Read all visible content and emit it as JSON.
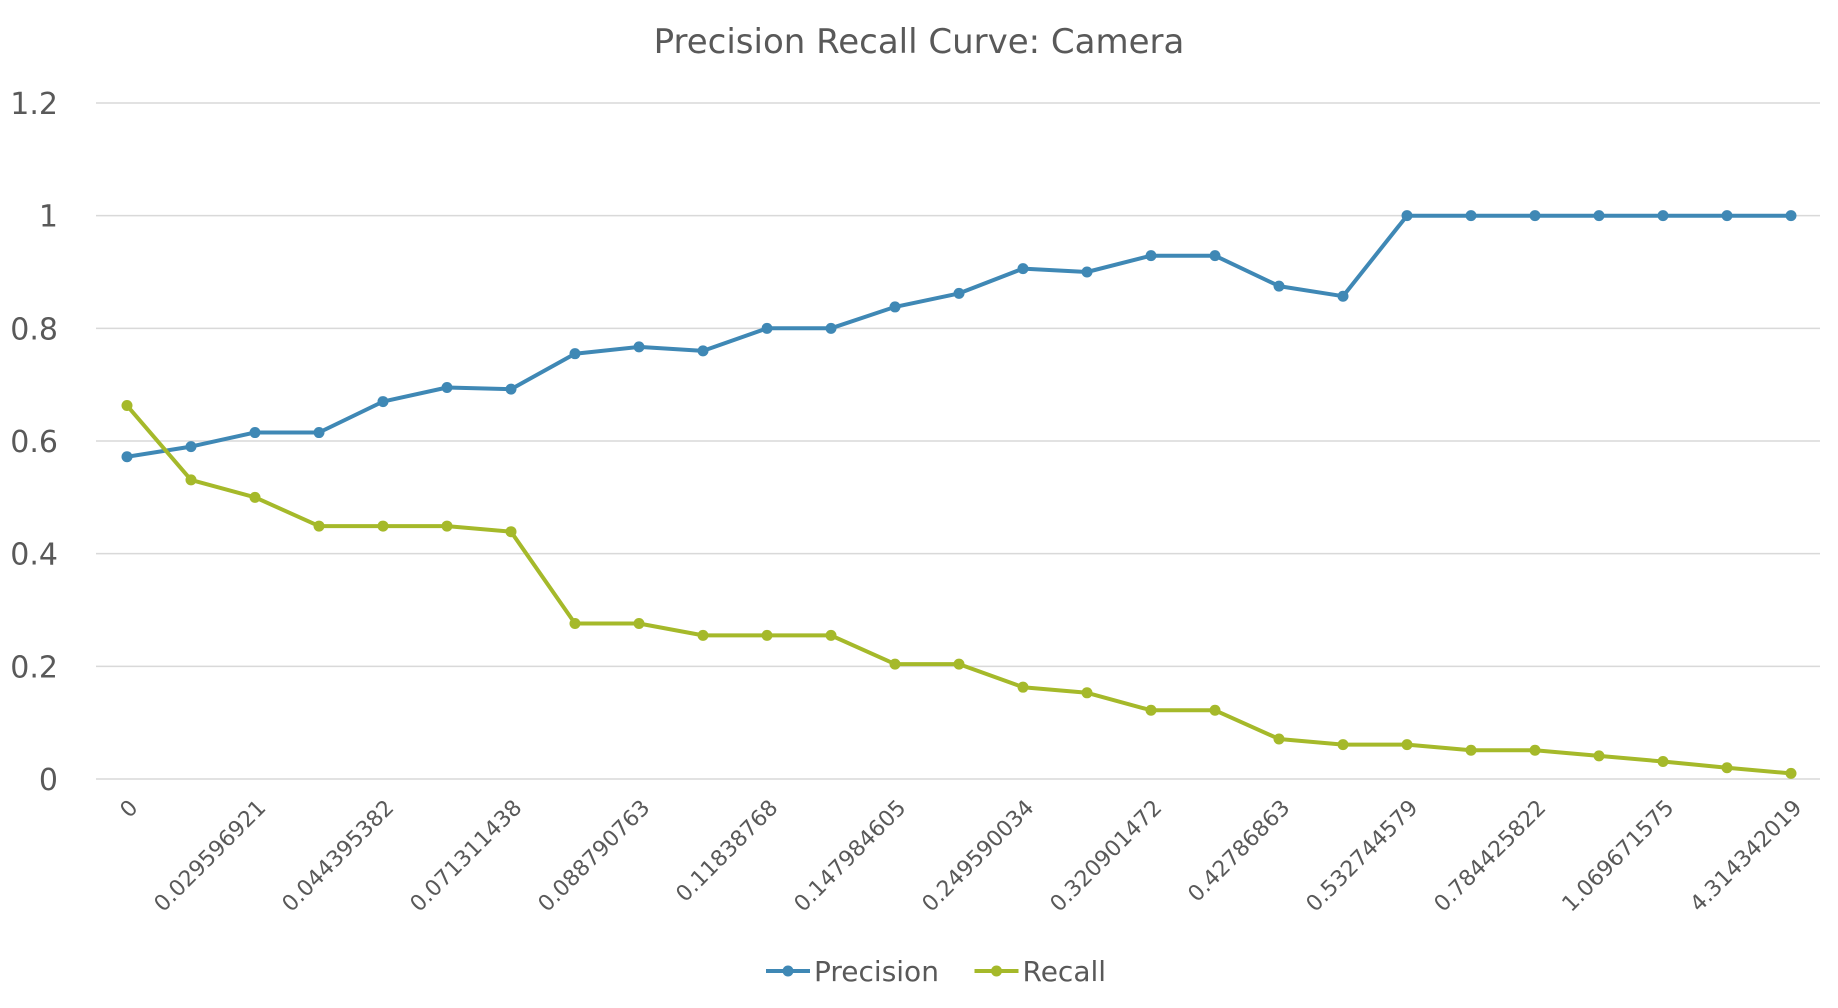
{
  "chart_data": {
    "type": "line",
    "title": "Precision Recall Curve: Camera",
    "xlabel": "",
    "ylabel": "",
    "ylim": [
      0,
      1.2
    ],
    "yticks": [
      "0",
      "0.2",
      "0.4",
      "0.6",
      "0.8",
      "1",
      "1.2"
    ],
    "grid": true,
    "legend_position": "bottom",
    "categories": [
      "0",
      "",
      "0.029596921",
      "",
      "0.044395382",
      "",
      "0.071311438",
      "",
      "0.088790763",
      "",
      "0.11838768",
      "",
      "0.147984605",
      "",
      "0.249590034",
      "",
      "0.320901472",
      "",
      "0.42786863",
      "",
      "0.532744579",
      "",
      "0.784425822",
      "",
      "1.069671575",
      "",
      "4.314342019"
    ],
    "series": [
      {
        "name": "Precision",
        "color": "#3f88b5",
        "values": [
          0.572,
          0.59,
          0.615,
          0.615,
          0.67,
          0.695,
          0.692,
          0.755,
          0.767,
          0.76,
          0.8,
          0.8,
          0.838,
          0.862,
          0.906,
          0.9,
          0.929,
          0.929,
          0.875,
          0.857,
          1.0,
          1.0,
          1.0,
          1.0,
          1.0,
          1.0,
          1.0
        ]
      },
      {
        "name": "Recall",
        "color": "#a5b92a",
        "values": [
          0.663,
          0.531,
          0.5,
          0.449,
          0.449,
          0.449,
          0.439,
          0.276,
          0.276,
          0.255,
          0.255,
          0.255,
          0.204,
          0.204,
          0.163,
          0.153,
          0.122,
          0.122,
          0.071,
          0.061,
          0.061,
          0.051,
          0.051,
          0.041,
          0.031,
          0.02,
          0.01
        ]
      }
    ]
  }
}
